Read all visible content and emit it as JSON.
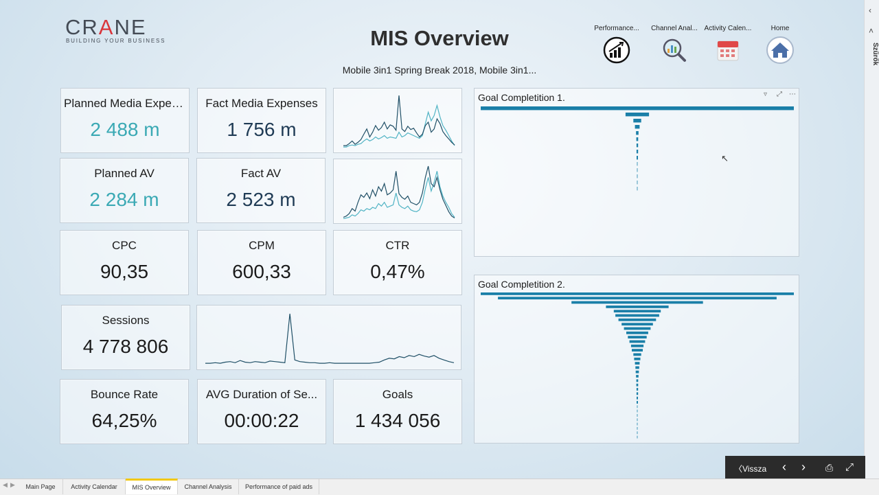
{
  "logo": {
    "name_pre": "CR",
    "name_accent": "A",
    "name_post": "NE",
    "tagline": "BUILDING YOUR BUSINESS"
  },
  "title": "MIS Overview",
  "subtitle": "Mobile 3in1 Spring Break 2018, Mobile 3in1...",
  "nav": [
    {
      "label": "Performance...",
      "icon": "growth-chart-icon"
    },
    {
      "label": "Channel Anal...",
      "icon": "magnifier-chart-icon"
    },
    {
      "label": "Activity Calen...",
      "icon": "calendar-icon"
    },
    {
      "label": "Home",
      "icon": "home-icon"
    }
  ],
  "side_panel": {
    "label": "Szűrők",
    "collapse_icon": "chevron-left-icon"
  },
  "kpis": {
    "planned_media": {
      "title": "Planned Media Expen...",
      "value": "2 488 m"
    },
    "fact_media": {
      "title": "Fact Media Expenses",
      "value": "1 756 m"
    },
    "planned_av": {
      "title": "Planned AV",
      "value": "2 284 m"
    },
    "fact_av": {
      "title": "Fact AV",
      "value": "2 523 m"
    },
    "cpc": {
      "title": "CPC",
      "value": "90,35"
    },
    "cpm": {
      "title": "CPM",
      "value": "600,33"
    },
    "ctr": {
      "title": "CTR",
      "value": "0,47%"
    },
    "sessions": {
      "title": "Sessions",
      "value": "4 778 806"
    },
    "bounce": {
      "title": "Bounce Rate",
      "value": "64,25%"
    },
    "avg_duration": {
      "title": "AVG Duration of Se...",
      "value": "00:00:22"
    },
    "goals": {
      "title": "Goals",
      "value": "1 434 056"
    }
  },
  "colors": {
    "teal": "#3aa9b4",
    "navy": "#1f3b55",
    "funnel": "#1a7fa8",
    "line_dark": "#1f4f66",
    "line_light": "#4fb3c4"
  },
  "funnel1": {
    "title": "Goal Completition 1.",
    "bars": [
      1.0,
      0.075,
      0.025,
      0.015,
      0.008,
      0.006,
      0.005,
      0.005,
      0.004,
      0.003,
      0.003,
      0.002,
      0.002,
      0.002
    ]
  },
  "funnel2": {
    "title": "Goal Completition 2.",
    "bars": [
      1.0,
      0.89,
      0.42,
      0.2,
      0.15,
      0.14,
      0.12,
      0.1,
      0.085,
      0.07,
      0.06,
      0.05,
      0.04,
      0.035,
      0.025,
      0.02,
      0.015,
      0.012,
      0.01,
      0.008,
      0.006,
      0.006,
      0.005,
      0.005,
      0.004,
      0.004,
      0.003,
      0.003,
      0.003,
      0.002,
      0.002,
      0.002,
      0.002,
      0.002
    ]
  },
  "sparks": {
    "media_dark": [
      5,
      5,
      8,
      12,
      7,
      10,
      14,
      22,
      30,
      18,
      25,
      35,
      28,
      32,
      40,
      30,
      36,
      34,
      28,
      80,
      30,
      26,
      34,
      29,
      31,
      24,
      18,
      22,
      35,
      40,
      25,
      30,
      45,
      38,
      26,
      20,
      15,
      10,
      6
    ],
    "media_light": [
      3,
      3,
      5,
      6,
      5,
      7,
      8,
      12,
      15,
      12,
      14,
      18,
      15,
      17,
      20,
      16,
      18,
      17,
      16,
      25,
      18,
      20,
      24,
      22,
      20,
      18,
      16,
      20,
      38,
      55,
      42,
      50,
      65,
      48,
      35,
      28,
      20,
      12,
      5
    ],
    "av_dark": [
      6,
      8,
      12,
      20,
      16,
      30,
      42,
      38,
      45,
      36,
      50,
      40,
      55,
      48,
      60,
      42,
      45,
      50,
      80,
      44,
      38,
      35,
      40,
      30,
      28,
      26,
      30,
      45,
      70,
      88,
      60,
      55,
      70,
      50,
      35,
      25,
      15,
      8,
      5
    ],
    "av_light": [
      4,
      5,
      6,
      10,
      8,
      12,
      18,
      16,
      20,
      18,
      22,
      20,
      28,
      24,
      30,
      22,
      24,
      26,
      45,
      26,
      22,
      20,
      24,
      18,
      16,
      15,
      18,
      30,
      52,
      70,
      48,
      62,
      80,
      55,
      40,
      30,
      22,
      12,
      6
    ],
    "sessions": [
      6,
      6,
      7,
      6,
      8,
      9,
      7,
      11,
      8,
      7,
      9,
      8,
      7,
      10,
      9,
      8,
      7,
      95,
      12,
      9,
      8,
      7,
      7,
      6,
      6,
      7,
      6,
      6,
      6,
      6,
      6,
      6,
      6,
      6,
      7,
      8,
      12,
      15,
      14,
      18,
      16,
      20,
      18,
      22,
      19,
      17,
      20,
      15,
      12,
      9,
      7
    ]
  },
  "controls": {
    "back_label": "Vissza"
  },
  "tabs": [
    "Main Page",
    "Activity Calendar",
    "MIS Overview",
    "Channel Analysis",
    "Performance of paid ads"
  ]
}
